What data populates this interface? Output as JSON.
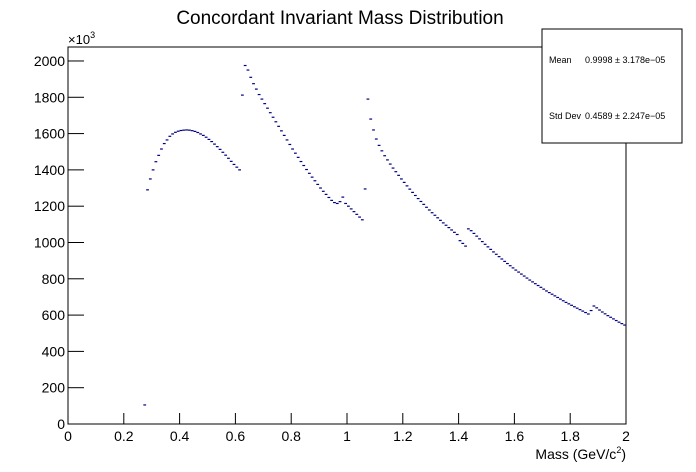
{
  "chart_data": {
    "type": "histogram-markers",
    "title": "Concordant Invariant Mass Distribution",
    "xlabel": [
      "Mass (GeV/c",
      "2",
      ")"
    ],
    "y_multiplier": [
      "×10",
      "3"
    ],
    "color": "#00007f",
    "xlim": [
      0,
      2
    ],
    "ylim": [
      0,
      2077
    ],
    "xticks": [
      0,
      0.2,
      0.4,
      0.6,
      0.8,
      1,
      1.2,
      1.4,
      1.6,
      1.8,
      2
    ],
    "yticks": [
      0,
      200,
      400,
      600,
      800,
      1000,
      1200,
      1400,
      1600,
      1800,
      2000
    ],
    "stats": {
      "rows": [
        [
          "Mean",
          "0.9998 ± 3.178e−05"
        ],
        [
          "Std Dev",
          "0.4589 ± 2.247e−05"
        ]
      ]
    },
    "x": [
      0.275,
      0.285,
      0.295,
      0.305,
      0.315,
      0.325,
      0.335,
      0.345,
      0.355,
      0.365,
      0.375,
      0.385,
      0.395,
      0.405,
      0.415,
      0.425,
      0.435,
      0.445,
      0.455,
      0.465,
      0.475,
      0.485,
      0.495,
      0.505,
      0.515,
      0.525,
      0.535,
      0.545,
      0.555,
      0.565,
      0.575,
      0.585,
      0.595,
      0.605,
      0.615,
      0.625,
      0.635,
      0.645,
      0.655,
      0.665,
      0.675,
      0.685,
      0.695,
      0.705,
      0.715,
      0.725,
      0.735,
      0.745,
      0.755,
      0.765,
      0.775,
      0.785,
      0.795,
      0.805,
      0.815,
      0.825,
      0.835,
      0.845,
      0.855,
      0.865,
      0.875,
      0.885,
      0.895,
      0.905,
      0.915,
      0.925,
      0.935,
      0.945,
      0.955,
      0.965,
      0.975,
      0.985,
      0.995,
      1.005,
      1.015,
      1.025,
      1.035,
      1.045,
      1.055,
      1.065,
      1.075,
      1.085,
      1.095,
      1.105,
      1.115,
      1.125,
      1.135,
      1.145,
      1.155,
      1.165,
      1.175,
      1.185,
      1.195,
      1.205,
      1.215,
      1.225,
      1.235,
      1.245,
      1.255,
      1.265,
      1.275,
      1.285,
      1.295,
      1.305,
      1.315,
      1.325,
      1.335,
      1.345,
      1.355,
      1.365,
      1.375,
      1.385,
      1.395,
      1.405,
      1.415,
      1.425,
      1.435,
      1.445,
      1.455,
      1.465,
      1.475,
      1.485,
      1.495,
      1.505,
      1.515,
      1.525,
      1.535,
      1.545,
      1.555,
      1.565,
      1.575,
      1.585,
      1.595,
      1.605,
      1.615,
      1.625,
      1.635,
      1.645,
      1.655,
      1.665,
      1.675,
      1.685,
      1.695,
      1.705,
      1.715,
      1.725,
      1.735,
      1.745,
      1.755,
      1.765,
      1.775,
      1.785,
      1.795,
      1.805,
      1.815,
      1.825,
      1.835,
      1.845,
      1.855,
      1.865,
      1.875,
      1.885,
      1.895,
      1.905,
      1.915,
      1.925,
      1.935,
      1.945,
      1.955,
      1.965,
      1.975,
      1.985,
      1.995
    ],
    "values": [
      105,
      1290,
      1350,
      1400,
      1445,
      1480,
      1515,
      1545,
      1565,
      1585,
      1598,
      1607,
      1613,
      1617,
      1619,
      1620,
      1619,
      1616,
      1612,
      1606,
      1598,
      1590,
      1580,
      1568,
      1556,
      1542,
      1528,
      1513,
      1497,
      1481,
      1464,
      1447,
      1430,
      1415,
      1400,
      1812,
      1975,
      1950,
      1910,
      1875,
      1845,
      1815,
      1790,
      1765,
      1740,
      1715,
      1690,
      1665,
      1640,
      1615,
      1590,
      1565,
      1540,
      1515,
      1492,
      1469,
      1446,
      1424,
      1402,
      1381,
      1360,
      1340,
      1320,
      1300,
      1282,
      1265,
      1248,
      1232,
      1220,
      1215,
      1225,
      1250,
      1215,
      1200,
      1185,
      1170,
      1155,
      1140,
      1125,
      1295,
      1790,
      1680,
      1620,
      1570,
      1535,
      1505,
      1478,
      1455,
      1432,
      1410,
      1390,
      1370,
      1350,
      1331,
      1312,
      1294,
      1276,
      1259,
      1242,
      1226,
      1210,
      1194,
      1179,
      1164,
      1150,
      1136,
      1122,
      1108,
      1095,
      1082,
      1069,
      1056,
      1044,
      1010,
      995,
      980,
      1075,
      1065,
      1050,
      1035,
      1020,
      1005,
      990,
      976,
      962,
      948,
      935,
      922,
      909,
      896,
      884,
      872,
      860,
      848,
      837,
      826,
      815,
      804,
      793,
      783,
      773,
      763,
      753,
      743,
      733,
      724,
      715,
      706,
      697,
      688,
      679,
      670,
      662,
      654,
      646,
      638,
      630,
      622,
      614,
      606,
      625,
      650,
      640,
      628,
      617,
      607,
      597,
      588,
      579,
      570,
      561,
      553,
      545
    ]
  }
}
